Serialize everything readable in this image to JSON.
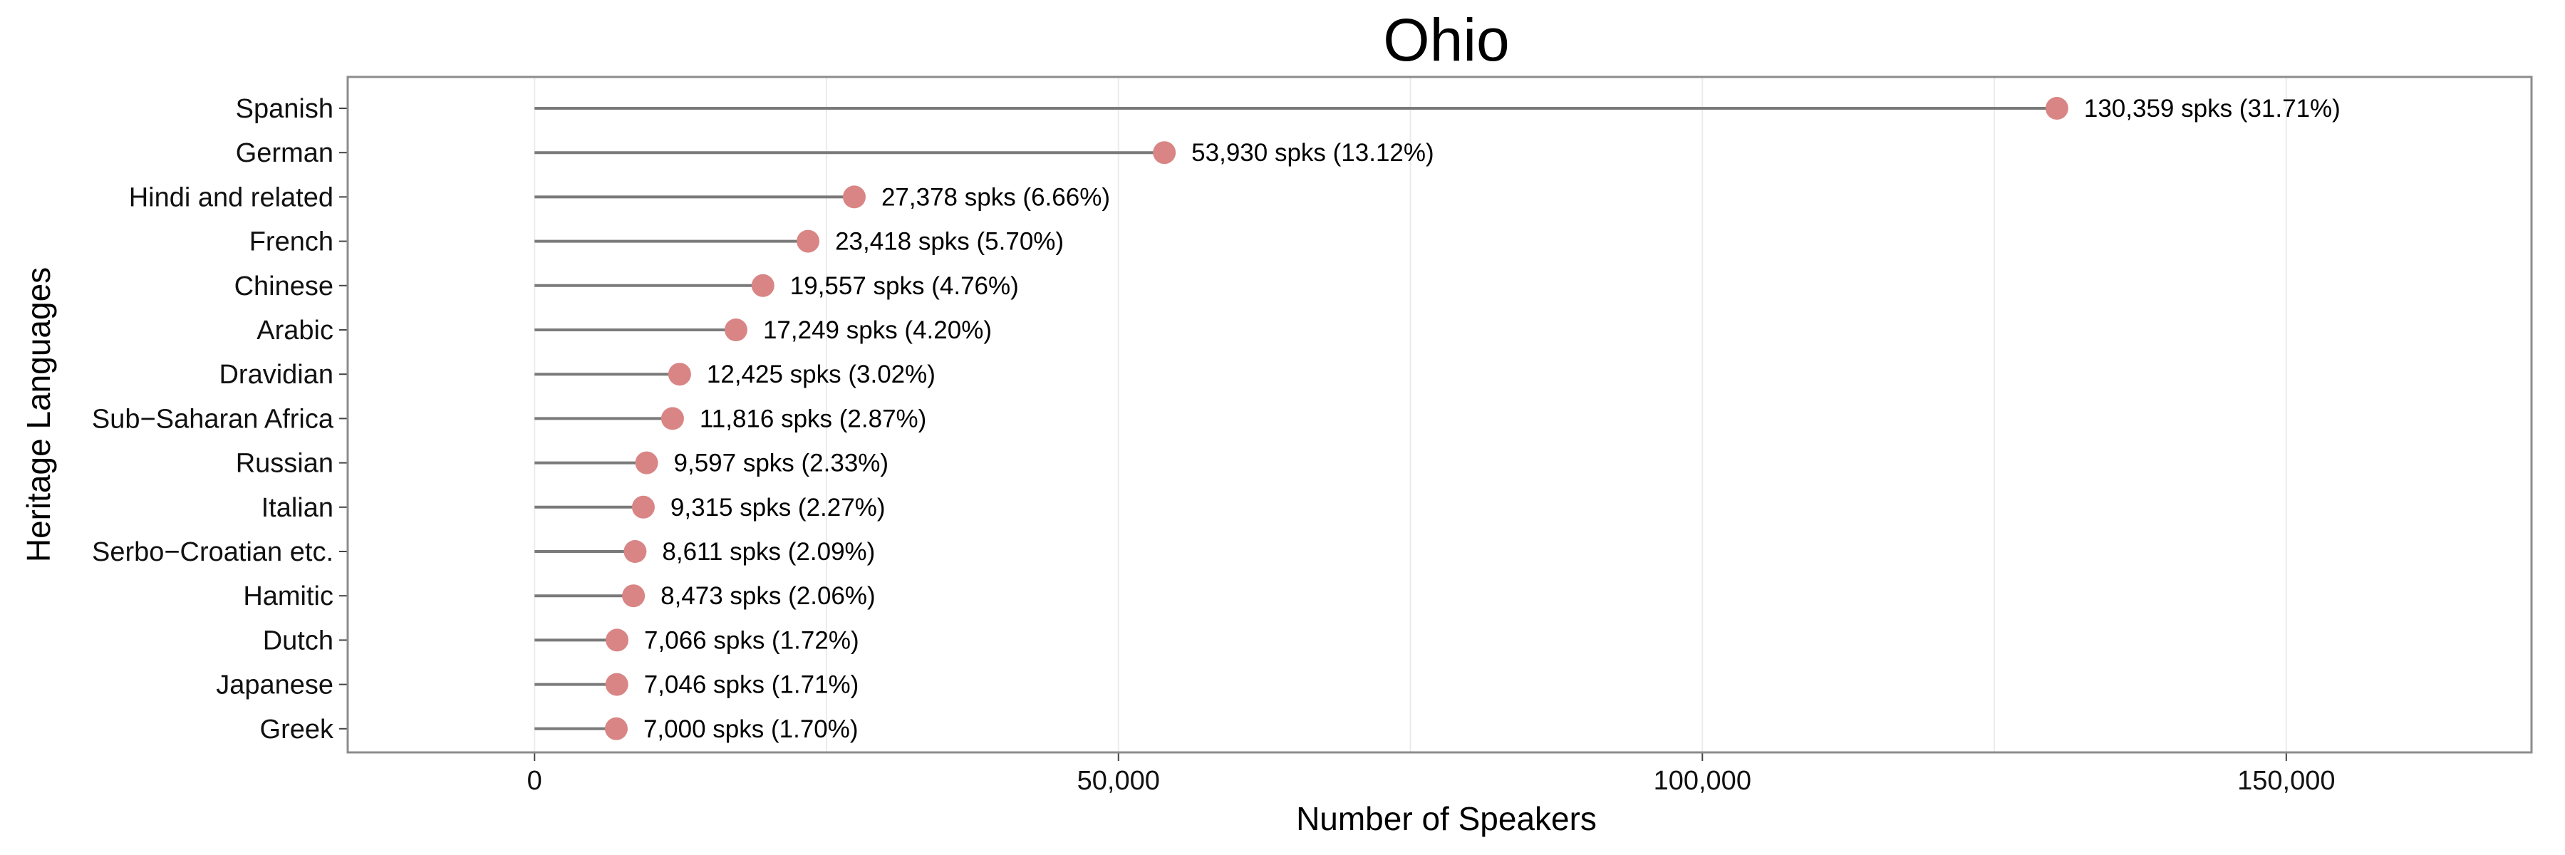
{
  "chart_data": {
    "type": "scatter",
    "subtype": "lollipop",
    "title": "Ohio",
    "xlabel": "Number of Speakers",
    "ylabel": "Heritage Languages",
    "xlim": [
      -16000,
      171000
    ],
    "x_ticks": [
      0,
      50000,
      100000,
      150000
    ],
    "x_tick_labels": [
      "0",
      "50,000",
      "100,000",
      "150,000"
    ],
    "grid": true,
    "categories": [
      "Spanish",
      "German",
      "Hindi and related",
      "French",
      "Chinese",
      "Arabic",
      "Dravidian",
      "Sub−Saharan Africa",
      "Russian",
      "Italian",
      "Serbo−Croatian etc.",
      "Hamitic",
      "Dutch",
      "Japanese",
      "Greek"
    ],
    "values": [
      130359,
      53930,
      27378,
      23418,
      19557,
      17249,
      12425,
      11816,
      9597,
      9315,
      8611,
      8473,
      7066,
      7046,
      7000
    ],
    "data_labels": [
      "130,359 spks (31.71%)",
      "53,930 spks (13.12%)",
      "27,378 spks (6.66%)",
      "23,418 spks (5.70%)",
      "19,557 spks (4.76%)",
      "17,249 spks (4.20%)",
      "12,425 spks (3.02%)",
      "11,816 spks (2.87%)",
      "9,597 spks (2.33%)",
      "9,315 spks (2.27%)",
      "8,611 spks (2.09%)",
      "8,473 spks (2.06%)",
      "7,066 spks (1.72%)",
      "7,046 spks (1.71%)",
      "7,000 spks (1.70%)"
    ],
    "colors": {
      "point": "#d98585",
      "stem": "#7a7a7a",
      "panel_border": "#8c8c8c",
      "grid": "#ebebeb"
    }
  }
}
